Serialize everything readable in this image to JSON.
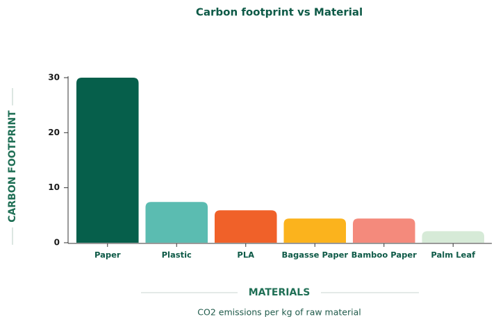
{
  "chart_data": {
    "type": "bar",
    "title": "Carbon footprint vs Material",
    "categories": [
      "Paper",
      "Plastic",
      "PLA",
      "Bagasse Paper",
      "Bamboo Paper",
      "Palm Leaf"
    ],
    "values": [
      30,
      7.4,
      5.9,
      4.4,
      4.4,
      2.1
    ],
    "colors": [
      "#065f4b",
      "#5bbcb1",
      "#f06129",
      "#fbb31d",
      "#f48a7c",
      "#d6ead7"
    ],
    "ylim": [
      0,
      30
    ],
    "yticks": [
      0,
      10,
      20,
      30
    ],
    "ylabel": "CARBON FOOTPRINT",
    "xlabel": "MATERIALS",
    "caption": "CO2 emissions per kg of raw material"
  }
}
